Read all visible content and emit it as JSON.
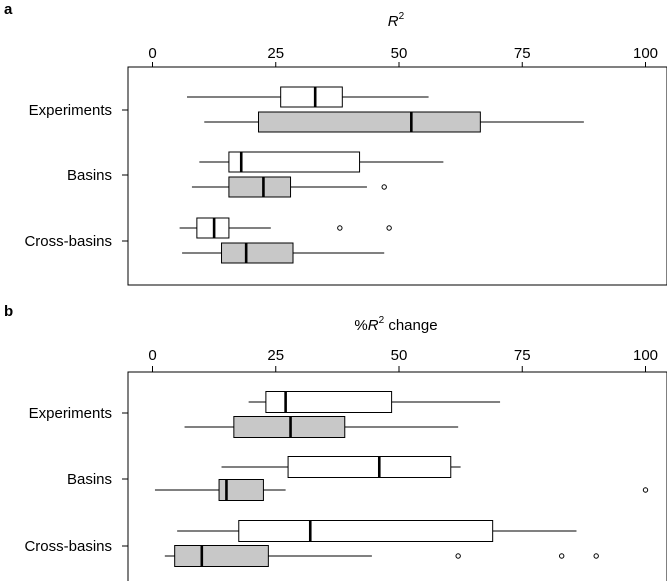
{
  "chart_data": [
    {
      "type": "box",
      "panel_label": "a",
      "title_prefix": "",
      "title_var": "R",
      "title_sup": "2",
      "title_suffix": "",
      "xlim": [
        0,
        100
      ],
      "ticks": [
        0,
        25,
        50,
        75,
        100
      ],
      "grid": false,
      "categories": [
        "Experiments",
        "Basins",
        "Cross-basins"
      ],
      "box_colors": [
        "#ffffff",
        "#c8c8c8"
      ],
      "boxes": [
        {
          "category": "Experiments",
          "fill": "#ffffff",
          "whisker_low": 7,
          "q1": 26,
          "median": 33,
          "q3": 38.5,
          "whisker_high": 56,
          "outliers": []
        },
        {
          "category": "Experiments",
          "fill": "#c8c8c8",
          "whisker_low": 10.5,
          "q1": 21.5,
          "median": 52.5,
          "q3": 66.5,
          "whisker_high": 87.5,
          "outliers": []
        },
        {
          "category": "Basins",
          "fill": "#ffffff",
          "whisker_low": 9.5,
          "q1": 15.5,
          "median": 18,
          "q3": 42,
          "whisker_high": 59,
          "outliers": []
        },
        {
          "category": "Basins",
          "fill": "#c8c8c8",
          "whisker_low": 8,
          "q1": 15.5,
          "median": 22.5,
          "q3": 28,
          "whisker_high": 43.5,
          "outliers": [
            47
          ]
        },
        {
          "category": "Cross-basins",
          "fill": "#ffffff",
          "whisker_low": 5.5,
          "q1": 9,
          "median": 12.5,
          "q3": 15.5,
          "whisker_high": 24,
          "outliers": [
            38,
            48
          ]
        },
        {
          "category": "Cross-basins",
          "fill": "#c8c8c8",
          "whisker_low": 6,
          "q1": 14,
          "median": 19,
          "q3": 28.5,
          "whisker_high": 47,
          "outliers": []
        }
      ]
    },
    {
      "type": "box",
      "panel_label": "b",
      "title_prefix": "%",
      "title_var": "R",
      "title_sup": "2",
      "title_suffix": " change",
      "xlim": [
        0,
        100
      ],
      "ticks": [
        0,
        25,
        50,
        75,
        100
      ],
      "grid": false,
      "categories": [
        "Experiments",
        "Basins",
        "Cross-basins"
      ],
      "box_colors": [
        "#ffffff",
        "#c8c8c8"
      ],
      "boxes": [
        {
          "category": "Experiments",
          "fill": "#ffffff",
          "whisker_low": 19.5,
          "q1": 23,
          "median": 27,
          "q3": 48.5,
          "whisker_high": 70.5,
          "outliers": []
        },
        {
          "category": "Experiments",
          "fill": "#c8c8c8",
          "whisker_low": 6.5,
          "q1": 16.5,
          "median": 28,
          "q3": 39,
          "whisker_high": 62,
          "outliers": []
        },
        {
          "category": "Basins",
          "fill": "#ffffff",
          "whisker_low": 14,
          "q1": 27.5,
          "median": 46,
          "q3": 60.5,
          "whisker_high": 62.5,
          "outliers": []
        },
        {
          "category": "Basins",
          "fill": "#c8c8c8",
          "whisker_low": 0.5,
          "q1": 13.5,
          "median": 15,
          "q3": 22.5,
          "whisker_high": 27,
          "outliers": [
            100
          ]
        },
        {
          "category": "Cross-basins",
          "fill": "#ffffff",
          "whisker_low": 5,
          "q1": 17.5,
          "median": 32,
          "q3": 69,
          "whisker_high": 86,
          "outliers": []
        },
        {
          "category": "Cross-basins",
          "fill": "#c8c8c8",
          "whisker_low": 2.5,
          "q1": 4.5,
          "median": 10,
          "q3": 23.5,
          "whisker_high": 44.5,
          "outliers": [
            62,
            83,
            90
          ]
        }
      ]
    }
  ]
}
